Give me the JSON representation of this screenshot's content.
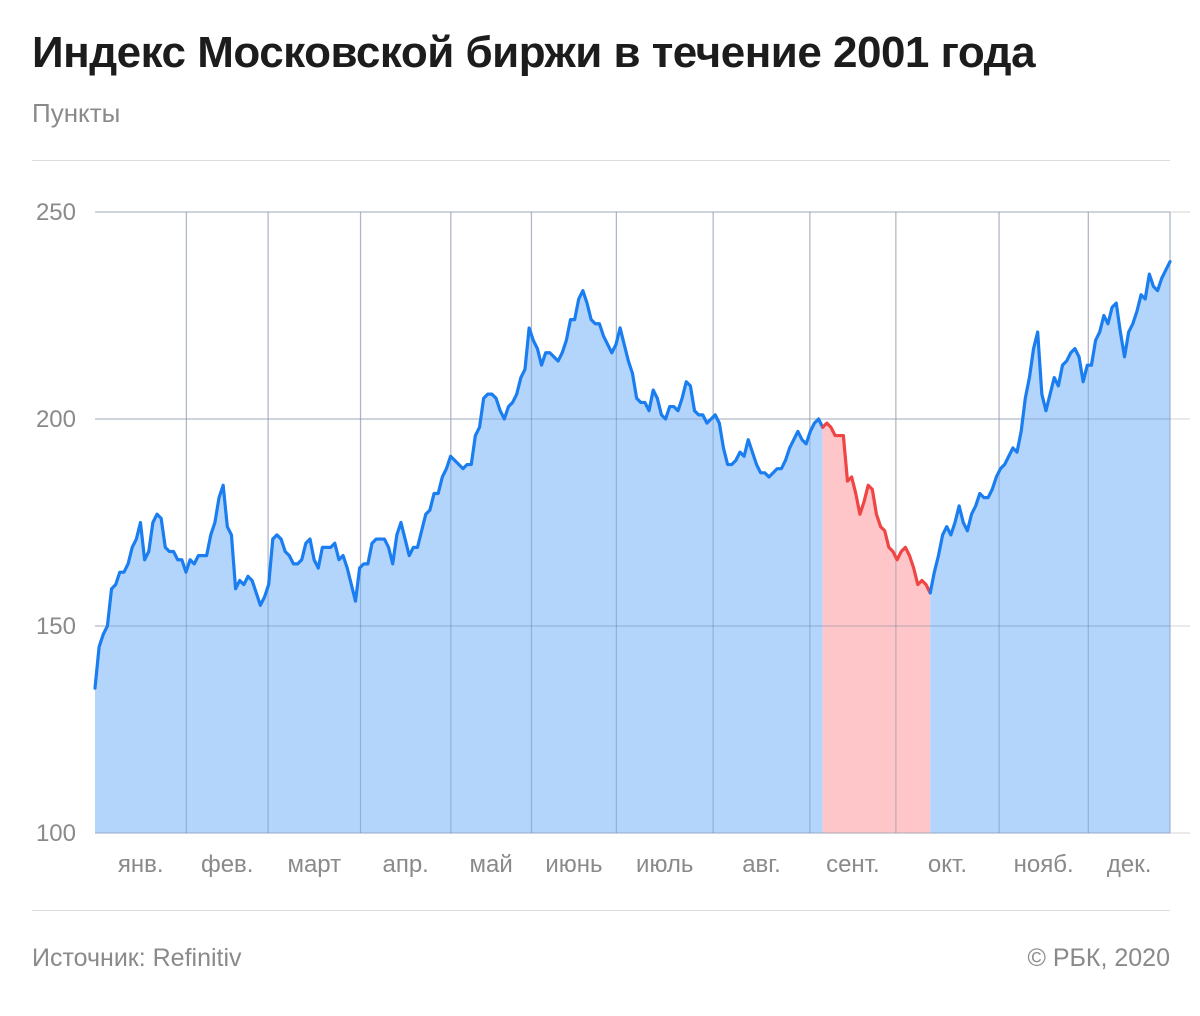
{
  "header": {
    "title": "Индекс Московской биржи в течение 2001 года",
    "subtitle": "Пункты"
  },
  "footer": {
    "source": "Источник:  Refinitiv",
    "copyright": "©  РБК, 2020"
  },
  "chart_data": {
    "type": "area",
    "title": "Индекс Московской биржи в течение 2001 года",
    "ylabel": "Пункты",
    "ylim": [
      100,
      250
    ],
    "yticks": [
      100,
      150,
      200,
      250
    ],
    "months": [
      "янв.",
      "фев.",
      "март",
      "апр.",
      "май",
      "июнь",
      "июль",
      "авг.",
      "сент.",
      "окт.",
      "нояб.",
      "дек."
    ],
    "grid": true,
    "colors": {
      "line": "#1a7df0",
      "fill": "#b3d4fb",
      "highlight_line": "#f04545",
      "highlight_fill": "#fec6c8"
    },
    "series": [
      {
        "values": [
          135,
          145,
          148,
          150,
          159,
          160,
          163,
          163,
          165,
          169,
          171,
          175,
          166,
          168,
          175,
          177,
          176,
          169,
          168,
          168,
          166,
          166,
          163,
          166,
          165,
          167,
          167,
          167,
          172,
          175,
          181,
          184,
          174,
          172,
          159,
          161,
          160,
          162,
          161,
          158,
          155,
          157,
          160,
          171,
          172,
          171,
          168,
          167,
          165,
          165,
          166,
          170,
          171,
          166,
          164,
          169,
          169,
          169,
          170,
          166,
          167,
          164,
          160,
          156,
          164,
          165,
          165,
          170,
          171,
          171,
          171,
          169,
          165,
          172,
          175,
          171,
          167,
          169,
          169,
          173,
          177,
          178,
          182,
          182,
          186,
          188,
          191,
          190,
          189,
          188,
          189,
          189,
          196,
          198,
          205,
          206,
          206,
          205,
          202,
          200,
          203,
          204,
          206,
          210,
          212,
          222,
          219,
          217,
          213,
          216,
          216,
          215,
          214,
          216,
          219,
          224,
          224,
          229,
          231,
          228,
          224,
          223,
          223,
          220,
          218,
          216,
          218,
          222,
          218,
          214,
          211,
          205,
          204,
          204,
          202,
          207,
          205,
          201,
          200,
          203,
          203,
          202,
          205,
          209,
          208,
          202,
          201,
          201,
          199,
          200,
          201,
          199,
          193,
          189,
          189,
          190,
          192,
          191,
          195,
          192,
          189,
          187,
          187,
          186,
          187,
          188,
          188,
          190,
          193,
          195,
          197,
          195,
          194,
          197,
          199,
          200,
          198,
          199,
          198,
          196,
          196,
          196,
          185,
          186,
          182,
          177,
          180,
          184,
          183,
          177,
          174,
          173,
          169,
          168,
          166,
          168,
          169,
          167,
          164,
          160,
          161,
          160,
          158,
          163,
          167,
          172,
          174,
          172,
          175,
          179,
          175,
          173,
          177,
          179,
          182,
          181,
          181,
          183,
          186,
          188,
          189,
          191,
          193,
          192,
          197,
          205,
          210,
          217,
          221,
          206,
          202,
          206,
          210,
          208,
          213,
          214,
          216,
          217,
          215,
          209,
          213,
          213,
          219,
          221,
          225,
          223,
          227,
          228,
          221,
          215,
          221,
          223,
          226,
          230,
          229,
          235,
          232,
          231,
          234,
          236,
          238
        ]
      }
    ],
    "highlight_range": [
      176,
      202
    ]
  }
}
